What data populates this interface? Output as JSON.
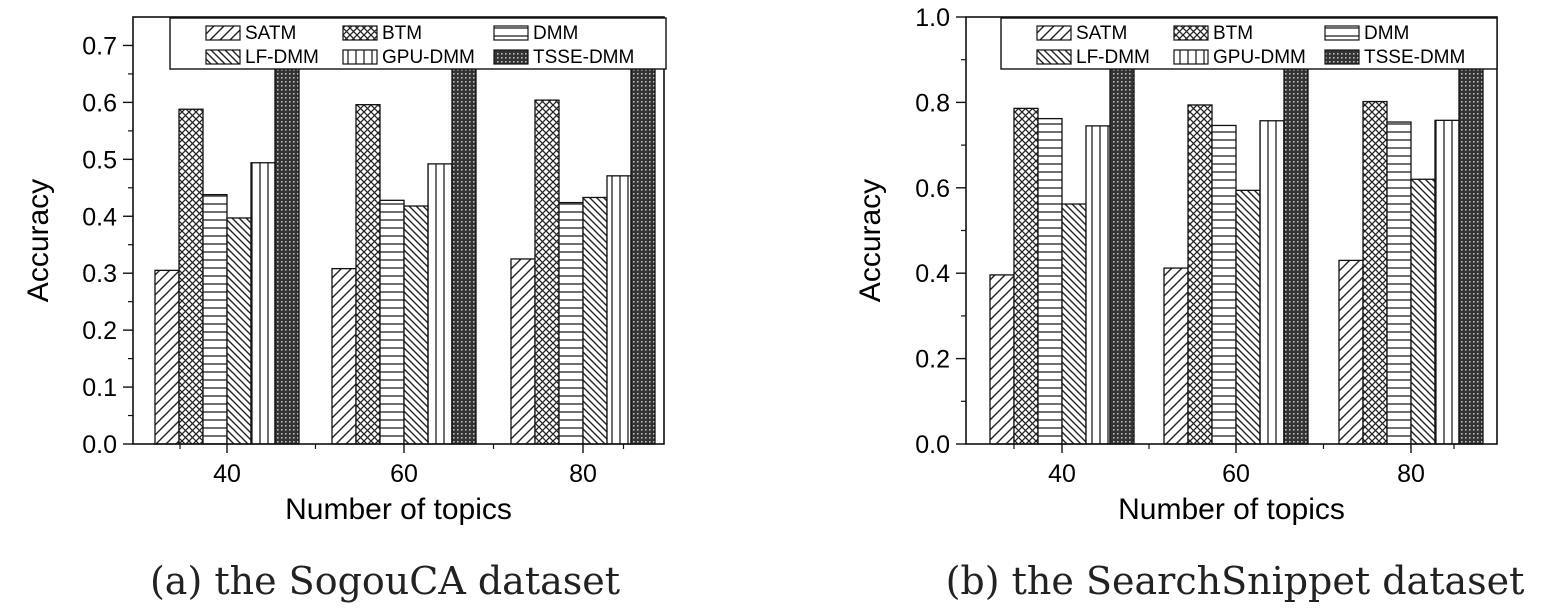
{
  "chart_data": [
    {
      "type": "bar",
      "caption": "(a) the SogouCA dataset",
      "xlabel": "Number of topics",
      "ylabel": "Accuracy",
      "categories": [
        "40",
        "60",
        "80"
      ],
      "ylim": [
        0,
        0.75
      ],
      "yticks": [
        "0.0",
        "0.1",
        "0.2",
        "0.3",
        "0.4",
        "0.5",
        "0.6",
        "0.7"
      ],
      "ytick_values": [
        0,
        0.1,
        0.2,
        0.3,
        0.4,
        0.5,
        0.6,
        0.7
      ],
      "legend_position": "top",
      "grid": false,
      "series": [
        {
          "name": "SATM",
          "pattern": "diag-forward",
          "values": [
            0.305,
            0.308,
            0.325
          ]
        },
        {
          "name": "BTM",
          "pattern": "crosshatch",
          "values": [
            0.588,
            0.596,
            0.604
          ]
        },
        {
          "name": "DMM",
          "pattern": "horizontal",
          "values": [
            0.438,
            0.428,
            0.424
          ]
        },
        {
          "name": "LF-DMM",
          "pattern": "diag-backward",
          "values": [
            0.397,
            0.418,
            0.433
          ]
        },
        {
          "name": "GPU-DMM",
          "pattern": "vertical",
          "values": [
            0.494,
            0.492,
            0.471
          ]
        },
        {
          "name": "TSSE-DMM",
          "pattern": "dense-grid",
          "values": [
            0.667,
            0.668,
            0.687
          ]
        }
      ]
    },
    {
      "type": "bar",
      "caption": "(b) the SearchSnippet dataset",
      "xlabel": "Number of topics",
      "ylabel": "Accuracy",
      "categories": [
        "40",
        "60",
        "80"
      ],
      "ylim": [
        0,
        1.0
      ],
      "yticks": [
        "0.0",
        "0.2",
        "0.4",
        "0.6",
        "0.8",
        "1.0"
      ],
      "ytick_values": [
        0,
        0.2,
        0.4,
        0.6,
        0.8,
        1.0
      ],
      "legend_position": "top",
      "grid": false,
      "series": [
        {
          "name": "SATM",
          "pattern": "diag-forward",
          "values": [
            0.396,
            0.412,
            0.43
          ]
        },
        {
          "name": "BTM",
          "pattern": "crosshatch",
          "values": [
            0.786,
            0.794,
            0.802
          ]
        },
        {
          "name": "DMM",
          "pattern": "horizontal",
          "values": [
            0.762,
            0.746,
            0.754
          ]
        },
        {
          "name": "LF-DMM",
          "pattern": "diag-backward",
          "values": [
            0.562,
            0.594,
            0.62
          ]
        },
        {
          "name": "GPU-DMM",
          "pattern": "vertical",
          "values": [
            0.745,
            0.757,
            0.758
          ]
        },
        {
          "name": "TSSE-DMM",
          "pattern": "dense-grid",
          "values": [
            0.884,
            0.887,
            0.89
          ]
        }
      ]
    }
  ]
}
